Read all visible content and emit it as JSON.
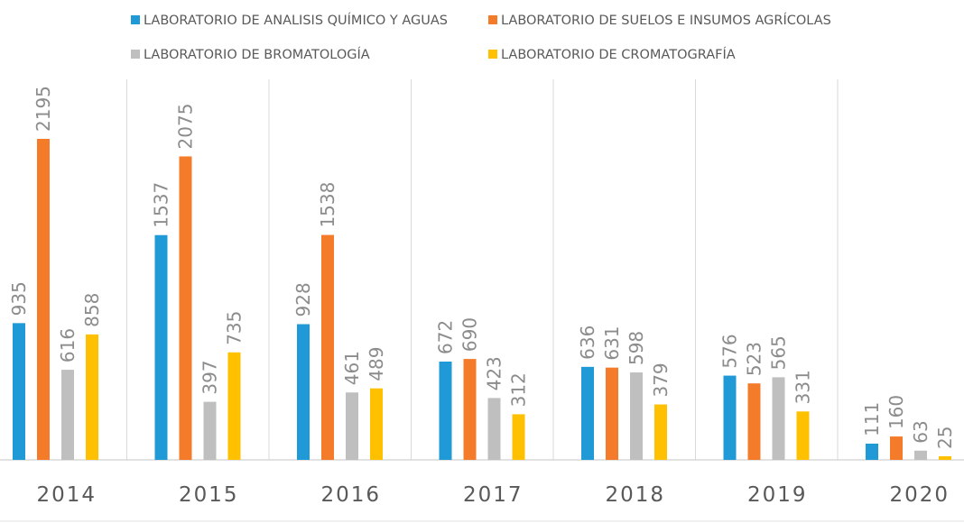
{
  "chart_data": {
    "type": "bar",
    "title": "",
    "xlabel": "",
    "ylabel": "",
    "ylim": [
      0,
      2250
    ],
    "grid": "vertical-separators",
    "legend_position": "top",
    "categories": [
      "2014",
      "2015",
      "2016",
      "2017",
      "2018",
      "2019",
      "2020"
    ],
    "series": [
      {
        "name": "LABORATORIO DE ANALISIS QUÍMICO Y AGUAS",
        "color": "#1f9ad6",
        "values": [
          935,
          1537,
          928,
          672,
          636,
          576,
          111
        ]
      },
      {
        "name": "LABORATORIO DE SUELOS E INSUMOS AGRÍCOLAS",
        "color": "#f47b2a",
        "values": [
          2195,
          2075,
          1538,
          690,
          631,
          523,
          160
        ]
      },
      {
        "name": "LABORATORIO DE BROMATOLOGÍA",
        "color": "#bfbfbf",
        "values": [
          616,
          397,
          461,
          423,
          598,
          565,
          63
        ]
      },
      {
        "name": "LABORATORIO DE CROMATOGRAFÍA",
        "color": "#ffc000",
        "values": [
          858,
          735,
          489,
          312,
          379,
          331,
          25
        ]
      }
    ]
  }
}
